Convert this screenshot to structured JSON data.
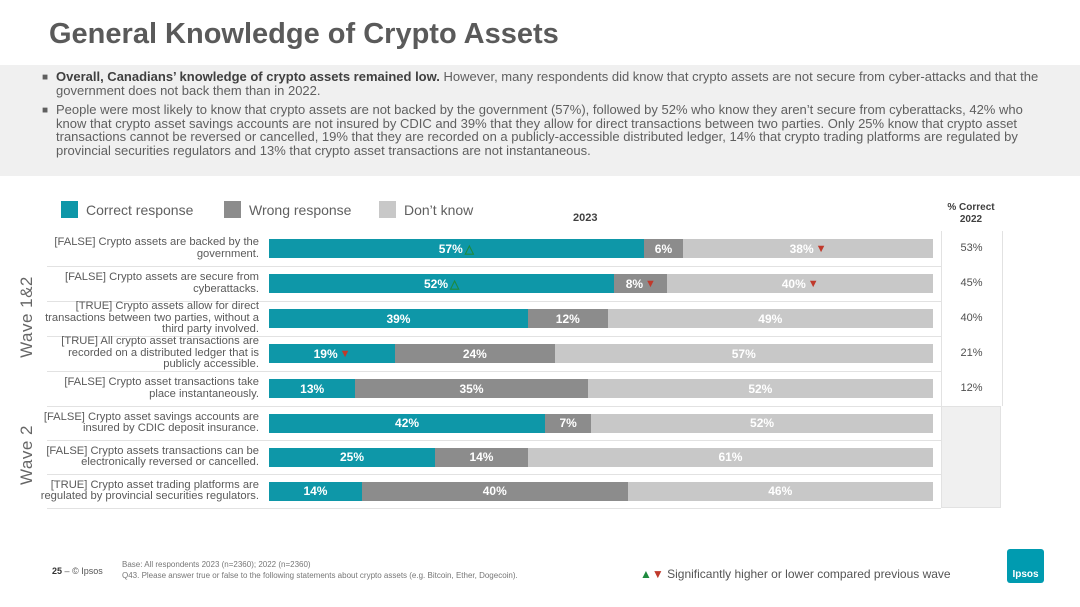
{
  "title": "General Knowledge of Crypto Assets",
  "summary": {
    "b1_bold": "Overall, Canadians’ knowledge of crypto assets remained low.",
    "b1_rest": " However, many respondents did know that crypto assets are not secure from cyber-attacks and that the government does not back them than in 2022.",
    "b2": "People were most likely to know that crypto assets are not backed by the government (57%), followed by 52% who know they aren’t secure from cyberattacks, 42% who know that crypto asset savings accounts are not insured by CDIC and 39% that they allow for direct transactions between two parties. Only 25% know that crypto asset transactions cannot be reversed or cancelled, 19% that they are recorded on a publicly-accessible distributed ledger, 14% that crypto trading platforms are regulated by provincial securities regulators and 13% that crypto asset transactions are not instantaneous."
  },
  "legend": {
    "correct": "Correct response",
    "wrong": "Wrong response",
    "dontknow": "Don’t know"
  },
  "year_label": "2023",
  "pct_header": "% Correct 2022",
  "wave1_label": "Wave 1&2",
  "wave2_label": "Wave 2",
  "colors": {
    "correct": "#0e97a8",
    "wrong": "#8c8c8c",
    "dontknow": "#c8c8c8",
    "up": "#1e8a3e",
    "down": "#c0392b"
  },
  "chart_data": {
    "type": "bar",
    "stacked": true,
    "orientation": "horizontal",
    "title": "2023",
    "series_names": [
      "Correct response",
      "Wrong response",
      "Don’t know"
    ],
    "rows": [
      {
        "label": "[FALSE] Crypto assets are backed by the government.",
        "wave": "Wave 1&2",
        "correct": 57,
        "wrong": 6,
        "dontknow": 38,
        "correct_label": "57%",
        "wrong_label": "6%",
        "dontknow_label": "38%",
        "marks": {
          "correct": "up",
          "dontknow": "down"
        },
        "pct_2022": "53%"
      },
      {
        "label": "[FALSE] Crypto assets are secure from cyberattacks.",
        "wave": "Wave 1&2",
        "correct": 52,
        "wrong": 8,
        "dontknow": 40,
        "correct_label": "52%",
        "wrong_label": "8%",
        "dontknow_label": "40%",
        "marks": {
          "correct": "up",
          "wrong": "down",
          "dontknow": "down"
        },
        "pct_2022": "45%"
      },
      {
        "label": "[TRUE] Crypto assets allow for direct transactions between two parties, without a third party involved.",
        "wave": "Wave 1&2",
        "correct": 39,
        "wrong": 12,
        "dontknow": 49,
        "correct_label": "39%",
        "wrong_label": "12%",
        "dontknow_label": "49%",
        "marks": {},
        "pct_2022": "40%"
      },
      {
        "label": "[TRUE] All crypto asset transactions are recorded on a distributed ledger that is publicly accessible.",
        "wave": "Wave 1&2",
        "correct": 19,
        "wrong": 24,
        "dontknow": 57,
        "correct_label": "19%",
        "wrong_label": "24%",
        "dontknow_label": "57%",
        "marks": {
          "correct": "down"
        },
        "pct_2022": "21%"
      },
      {
        "label": "[FALSE] Crypto asset transactions take place instantaneously.",
        "wave": "Wave 1&2",
        "correct": 13,
        "wrong": 35,
        "dontknow": 52,
        "correct_label": "13%",
        "wrong_label": "35%",
        "dontknow_label": "52%",
        "marks": {},
        "pct_2022": "12%"
      },
      {
        "label": "[FALSE] Crypto asset savings accounts are insured by CDIC deposit insurance.",
        "wave": "Wave 2",
        "correct": 42,
        "wrong": 7,
        "dontknow": 52,
        "correct_label": "42%",
        "wrong_label": "7%",
        "dontknow_label": "52%",
        "marks": {},
        "pct_2022": ""
      },
      {
        "label": "[FALSE] Crypto assets transactions can be electronically reversed or cancelled.",
        "wave": "Wave 2",
        "correct": 25,
        "wrong": 14,
        "dontknow": 61,
        "correct_label": "25%",
        "wrong_label": "14%",
        "dontknow_label": "61%",
        "marks": {},
        "pct_2022": ""
      },
      {
        "label": "[TRUE] Crypto asset trading platforms are regulated by provincial securities regulators.",
        "wave": "Wave 2",
        "correct": 14,
        "wrong": 40,
        "dontknow": 46,
        "correct_label": "14%",
        "wrong_label": "40%",
        "dontknow_label": "46%",
        "marks": {},
        "pct_2022": ""
      }
    ],
    "xlim": [
      0,
      100
    ]
  },
  "footer": {
    "page": "25",
    "dash": "–",
    "copyright": "© Ipsos",
    "base": "Base: All respondents 2023 (n=2360); 2022 (n=2360)",
    "question": "Q43. Please answer true or false to the following statements about crypto assets (e.g. Bitcoin, Ether, Dogecoin).",
    "legend_text": "Significantly higher or lower compared previous wave",
    "logo": "Ipsos"
  }
}
